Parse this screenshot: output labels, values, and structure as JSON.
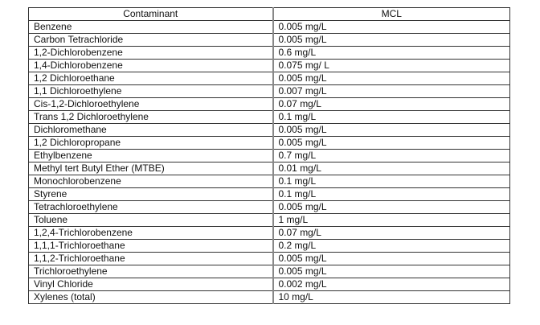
{
  "table": {
    "headers": [
      "Contaminant",
      "MCL"
    ],
    "rows": [
      [
        "Benzene",
        "0.005 mg/L"
      ],
      [
        "Carbon Tetrachloride",
        "0.005 mg/L"
      ],
      [
        "1,2-Dichlorobenzene",
        "0.6 mg/L"
      ],
      [
        "1,4-Dichlorobenzene",
        "0.075 mg/ L"
      ],
      [
        "1,2 Dichloroethane",
        "0.005 mg/L"
      ],
      [
        "1,1 Dichloroethylene",
        "0.007 mg/L"
      ],
      [
        "Cis-1,2-Dichloroethylene",
        "0.07 mg/L"
      ],
      [
        "Trans 1,2 Dichloroethylene",
        "0.1 mg/L"
      ],
      [
        "Dichloromethane",
        "0.005 mg/L"
      ],
      [
        "1,2 Dichloropropane",
        "0.005 mg/L"
      ],
      [
        "Ethylbenzene",
        "0.7 mg/L"
      ],
      [
        "Methyl tert Butyl Ether (MTBE)",
        "0.01 mg/L"
      ],
      [
        "Monochlorobenzene",
        "0.1 mg/L"
      ],
      [
        "Styrene",
        "0.1 mg/L"
      ],
      [
        "Tetrachloroethylene",
        "0.005 mg/L"
      ],
      [
        "Toluene",
        "1 mg/L"
      ],
      [
        "1,2,4-Trichlorobenzene",
        "0.07 mg/L"
      ],
      [
        "1,1,1-Trichloroethane",
        "0.2 mg/L"
      ],
      [
        "1,1,2-Trichloroethane",
        "0.005 mg/L"
      ],
      [
        "Trichloroethylene",
        "0.005 mg/L"
      ],
      [
        "Vinyl Chloride",
        "0.002 mg/L"
      ],
      [
        "Xylenes (total)",
        "10 mg/L"
      ]
    ]
  }
}
